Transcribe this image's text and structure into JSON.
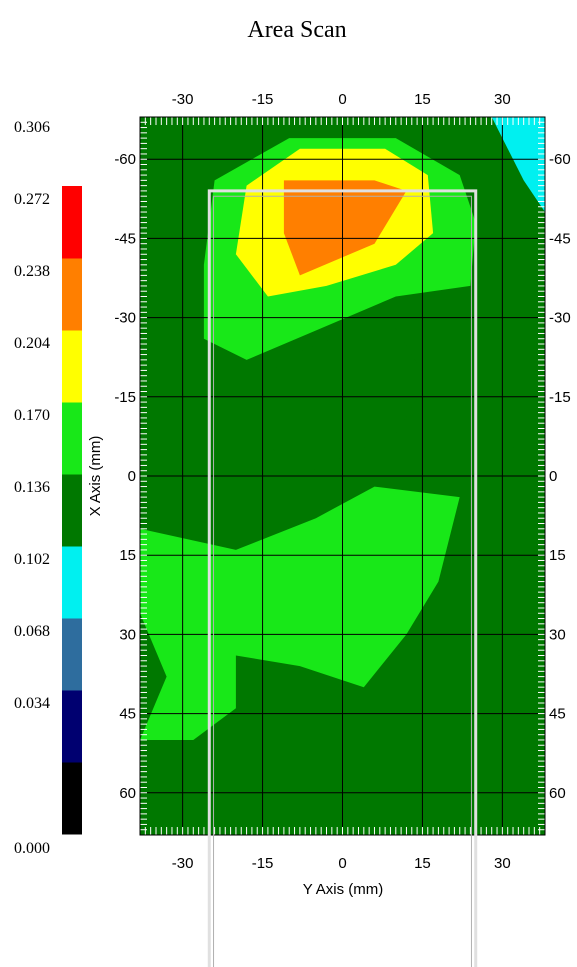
{
  "chart_data": {
    "type": "heatmap",
    "subtype": "filled contour map",
    "title": "Area Scan",
    "xlabel": "Y Axis (mm)",
    "ylabel": "X Axis (mm)",
    "x_range": [
      -38,
      38
    ],
    "y_range": [
      -68,
      68
    ],
    "y_inverted": true,
    "x_ticks": [
      "-30",
      "-15",
      "0",
      "15",
      "30"
    ],
    "x_tick_values": [
      -30,
      -15,
      0,
      15,
      30
    ],
    "y_ticks": [
      "-60",
      "-45",
      "-30",
      "-15",
      "0",
      "15",
      "30",
      "45",
      "60"
    ],
    "y_tick_values": [
      -60,
      -45,
      -30,
      -15,
      0,
      15,
      30,
      45,
      60
    ],
    "grid": true,
    "colorbar": {
      "levels": [
        "0.000",
        "0.034",
        "0.068",
        "0.102",
        "0.136",
        "0.170",
        "0.204",
        "0.238",
        "0.272",
        "0.306"
      ],
      "colors": [
        "#000000",
        "#000070",
        "#2e6d9e",
        "#00f0f0",
        "#007800",
        "#18e818",
        "#ffff00",
        "#ff7f00",
        "#ff0000"
      ]
    },
    "regions": [
      {
        "band": "0.136-0.170",
        "points": [
          [
            -38,
            -68
          ],
          [
            -22,
            -68
          ],
          [
            -30,
            -58
          ],
          [
            -38,
            -50
          ]
        ]
      },
      {
        "band": "0.136-0.170",
        "points": [
          [
            16,
            -68
          ],
          [
            32,
            -68
          ],
          [
            38,
            -60
          ],
          [
            38,
            -42
          ],
          [
            26,
            -20
          ],
          [
            38,
            -10
          ],
          [
            38,
            2
          ],
          [
            30,
            -8
          ],
          [
            28,
            -40
          ],
          [
            22,
            -60
          ]
        ]
      },
      {
        "band": "0.102-0.136",
        "points": [
          [
            28,
            -68
          ],
          [
            38,
            -68
          ],
          [
            38,
            -50
          ],
          [
            34,
            -56
          ]
        ]
      },
      {
        "band": "0.136-0.170",
        "points": [
          [
            -38,
            -2
          ],
          [
            -34,
            6
          ],
          [
            -38,
            10
          ]
        ]
      },
      {
        "band": "0.136-0.170",
        "points": [
          [
            -38,
            64
          ],
          [
            -24,
            62
          ],
          [
            -12,
            68
          ],
          [
            -38,
            68
          ]
        ]
      },
      {
        "band": "0.170-0.204",
        "points": [
          [
            -24,
            -56
          ],
          [
            -10,
            -64
          ],
          [
            10,
            -64
          ],
          [
            22,
            -57
          ],
          [
            25,
            -48
          ],
          [
            24,
            -36
          ],
          [
            10,
            -34
          ],
          [
            -4,
            -28
          ],
          [
            -18,
            -22
          ],
          [
            -26,
            -26
          ],
          [
            -26,
            -40
          ]
        ]
      },
      {
        "band": "0.204-0.238",
        "points": [
          [
            -18,
            -55
          ],
          [
            -8,
            -62
          ],
          [
            8,
            -62
          ],
          [
            16,
            -57
          ],
          [
            17,
            -46
          ],
          [
            10,
            -40
          ],
          [
            -3,
            -36
          ],
          [
            -14,
            -34
          ],
          [
            -20,
            -42
          ]
        ]
      },
      {
        "band": "0.238-0.272",
        "points": [
          [
            -11,
            -56
          ],
          [
            6,
            -56
          ],
          [
            12,
            -54
          ],
          [
            6,
            -44
          ],
          [
            -8,
            -38
          ],
          [
            -11,
            -46
          ]
        ]
      },
      {
        "band": "0.136-0.170",
        "points": [
          [
            -12,
            -22
          ],
          [
            -2,
            -26
          ],
          [
            10,
            -28
          ],
          [
            16,
            -18
          ],
          [
            10,
            -8
          ],
          [
            -8,
            0
          ],
          [
            -16,
            -8
          ]
        ]
      },
      {
        "band": "0.170-0.204",
        "points": [
          [
            -38,
            10
          ],
          [
            -20,
            14
          ],
          [
            -5,
            8
          ],
          [
            6,
            2
          ],
          [
            22,
            4
          ],
          [
            18,
            20
          ],
          [
            12,
            30
          ],
          [
            4,
            40
          ],
          [
            -8,
            36
          ],
          [
            -20,
            34
          ],
          [
            -20,
            44
          ],
          [
            -28,
            50
          ],
          [
            -38,
            50
          ],
          [
            -33,
            38
          ],
          [
            -38,
            26
          ]
        ]
      }
    ],
    "base_band": "0.136-0.170",
    "annotations": "overlaid white rectangular outline from Y≈-25 to Y≈25 mm, X≈-54 mm extending below the plot"
  }
}
